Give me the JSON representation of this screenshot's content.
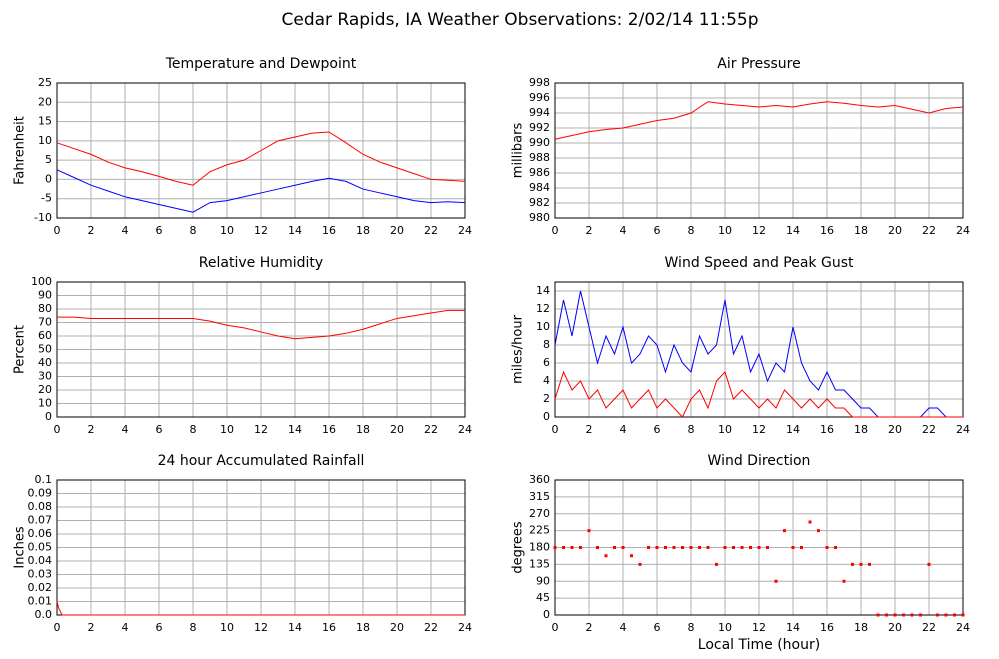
{
  "title": "Cedar Rapids, IA Weather Observations: 2/02/14 11:55p",
  "chart_data": [
    {
      "type": "line",
      "title": "Temperature and Dewpoint",
      "y_label": "Fahrenheit",
      "grid": true,
      "xlim": [
        0,
        24
      ],
      "xticks": [
        0,
        2,
        4,
        6,
        8,
        10,
        12,
        14,
        16,
        18,
        20,
        22,
        24
      ],
      "ylim": [
        -10,
        25
      ],
      "yticks": [
        -10,
        -5,
        0,
        5,
        10,
        15,
        20,
        25
      ],
      "x": [
        0,
        1,
        2,
        3,
        4,
        5,
        6,
        7,
        8,
        9,
        10,
        11,
        12,
        13,
        14,
        15,
        16,
        17,
        18,
        19,
        20,
        21,
        22,
        23,
        24
      ],
      "series": [
        {
          "color": "#ff0000",
          "values": [
            9.5,
            8,
            6.5,
            4.5,
            3,
            2,
            0.8,
            -0.5,
            -1.5,
            2,
            3.8,
            5,
            7.5,
            10,
            11,
            12,
            12.3,
            9.5,
            6.5,
            4.5,
            3,
            1.5,
            0,
            -0.2,
            -0.5
          ]
        },
        {
          "color": "#0000ff",
          "values": [
            2.5,
            0.5,
            -1.5,
            -3,
            -4.5,
            -5.5,
            -6.5,
            -7.5,
            -8.5,
            -6,
            -5.5,
            -4.5,
            -3.5,
            -2.5,
            -1.5,
            -0.5,
            0.3,
            -0.5,
            -2.5,
            -3.5,
            -4.5,
            -5.5,
            -6,
            -5.8,
            -6
          ]
        }
      ]
    },
    {
      "type": "line",
      "title": "Air Pressure",
      "y_label": "millibars",
      "grid": true,
      "xlim": [
        0,
        24
      ],
      "xticks": [
        0,
        2,
        4,
        6,
        8,
        10,
        12,
        14,
        16,
        18,
        20,
        22,
        24
      ],
      "ylim": [
        980,
        998
      ],
      "yticks": [
        980,
        982,
        984,
        986,
        988,
        990,
        992,
        994,
        996,
        998
      ],
      "x": [
        0,
        1,
        2,
        3,
        4,
        5,
        6,
        7,
        8,
        9,
        10,
        11,
        12,
        13,
        14,
        15,
        16,
        17,
        18,
        19,
        20,
        21,
        22,
        23,
        24
      ],
      "series": [
        {
          "color": "#ff0000",
          "values": [
            990.5,
            991,
            991.5,
            991.8,
            992,
            992.5,
            993,
            993.3,
            994,
            995.5,
            995.2,
            995,
            994.8,
            995,
            994.8,
            995.2,
            995.5,
            995.3,
            995,
            994.8,
            995,
            994.5,
            994,
            994.6,
            994.8
          ]
        }
      ]
    },
    {
      "type": "line",
      "title": "Relative Humidity",
      "y_label": "Percent",
      "grid": true,
      "xlim": [
        0,
        24
      ],
      "xticks": [
        0,
        2,
        4,
        6,
        8,
        10,
        12,
        14,
        16,
        18,
        20,
        22,
        24
      ],
      "ylim": [
        0,
        100
      ],
      "yticks": [
        0,
        10,
        20,
        30,
        40,
        50,
        60,
        70,
        80,
        90,
        100
      ],
      "x": [
        0,
        1,
        2,
        3,
        4,
        5,
        6,
        7,
        8,
        9,
        10,
        11,
        12,
        13,
        14,
        15,
        16,
        17,
        18,
        19,
        20,
        21,
        22,
        23,
        24
      ],
      "series": [
        {
          "color": "#ff0000",
          "values": [
            74,
            74,
            73,
            73,
            73,
            73,
            73,
            73,
            73,
            71,
            68,
            66,
            63,
            60,
            58,
            59,
            60,
            62,
            65,
            69,
            73,
            75,
            77,
            79,
            79
          ]
        }
      ]
    },
    {
      "type": "line",
      "title": "Wind Speed and Peak Gust",
      "y_label": "miles/hour",
      "grid": true,
      "xlim": [
        0,
        24
      ],
      "xticks": [
        0,
        2,
        4,
        6,
        8,
        10,
        12,
        14,
        16,
        18,
        20,
        22,
        24
      ],
      "ylim": [
        0,
        15
      ],
      "yticks": [
        0,
        2,
        4,
        6,
        8,
        10,
        12,
        14
      ],
      "x": [
        0,
        0.5,
        1,
        1.5,
        2,
        2.5,
        3,
        3.5,
        4,
        4.5,
        5,
        5.5,
        6,
        6.5,
        7,
        7.5,
        8,
        8.5,
        9,
        9.5,
        10,
        10.5,
        11,
        11.5,
        12,
        12.5,
        13,
        13.5,
        14,
        14.5,
        15,
        15.5,
        16,
        16.5,
        17,
        17.5,
        18,
        18.5,
        19,
        19.5,
        20,
        20.5,
        21,
        21.5,
        22,
        22.5,
        23,
        23.5,
        24
      ],
      "series": [
        {
          "color": "#0000ff",
          "values": [
            8,
            13,
            9,
            14,
            10,
            6,
            9,
            7,
            10,
            6,
            7,
            9,
            8,
            5,
            8,
            6,
            5,
            9,
            7,
            8,
            13,
            7,
            9,
            5,
            7,
            4,
            6,
            5,
            10,
            6,
            4,
            3,
            5,
            3,
            3,
            2,
            1,
            1,
            0,
            0,
            0,
            0,
            0,
            0,
            1,
            1,
            0,
            0,
            0
          ]
        },
        {
          "color": "#ff0000",
          "values": [
            2,
            5,
            3,
            4,
            2,
            3,
            1,
            2,
            3,
            1,
            2,
            3,
            1,
            2,
            1,
            0,
            2,
            3,
            1,
            4,
            5,
            2,
            3,
            2,
            1,
            2,
            1,
            3,
            2,
            1,
            2,
            1,
            2,
            1,
            1,
            0,
            0,
            0,
            0,
            0,
            0,
            0,
            0,
            0,
            0,
            0,
            0,
            0,
            0
          ]
        }
      ]
    },
    {
      "type": "line",
      "title": "24 hour Accumulated Rainfall",
      "y_label": "Inches",
      "grid": true,
      "xlim": [
        0,
        24
      ],
      "xticks": [
        0,
        2,
        4,
        6,
        8,
        10,
        12,
        14,
        16,
        18,
        20,
        22,
        24
      ],
      "ylim": [
        0,
        0.1
      ],
      "yticks": [
        {
          "value": 0,
          "label": "0.0"
        },
        0.01,
        0.02,
        0.03,
        0.04,
        0.05,
        0.06,
        0.07,
        0.08,
        0.09,
        0.1
      ],
      "x": [
        0,
        0.1,
        0.3,
        24
      ],
      "series": [
        {
          "color": "#ff0000",
          "values": [
            0.01,
            0.005,
            0,
            0
          ]
        }
      ]
    },
    {
      "type": "scatter",
      "title": "Wind Direction",
      "y_label": "degrees",
      "x_label": "Local Time (hour)",
      "grid": true,
      "xlim": [
        0,
        24
      ],
      "xticks": [
        0,
        2,
        4,
        6,
        8,
        10,
        12,
        14,
        16,
        18,
        20,
        22,
        24
      ],
      "ylim": [
        0,
        360
      ],
      "yticks": [
        0,
        45,
        90,
        135,
        180,
        225,
        270,
        315,
        360
      ],
      "x": [
        0,
        0.5,
        1,
        1.5,
        2,
        2.5,
        3,
        3.5,
        4,
        4.5,
        5,
        5.5,
        6,
        6.5,
        7,
        7.5,
        8,
        8.5,
        9,
        9.5,
        10,
        10.5,
        11,
        11.5,
        12,
        12.5,
        13,
        13.5,
        14,
        14.5,
        15,
        15.5,
        16,
        16.5,
        17,
        17.5,
        18,
        18.5,
        19,
        19.5,
        20,
        20.5,
        21,
        21.5,
        22,
        22.5,
        23,
        23.5,
        24
      ],
      "series": [
        {
          "color": "#ff0000",
          "values": [
            180,
            180,
            180,
            180,
            225,
            180,
            158,
            180,
            180,
            158,
            135,
            180,
            180,
            180,
            180,
            180,
            180,
            180,
            180,
            135,
            180,
            180,
            180,
            180,
            180,
            180,
            90,
            225,
            180,
            180,
            248,
            225,
            180,
            180,
            90,
            135,
            135,
            135,
            0,
            0,
            0,
            0,
            0,
            0,
            135,
            0,
            0,
            0,
            0
          ]
        }
      ]
    }
  ]
}
